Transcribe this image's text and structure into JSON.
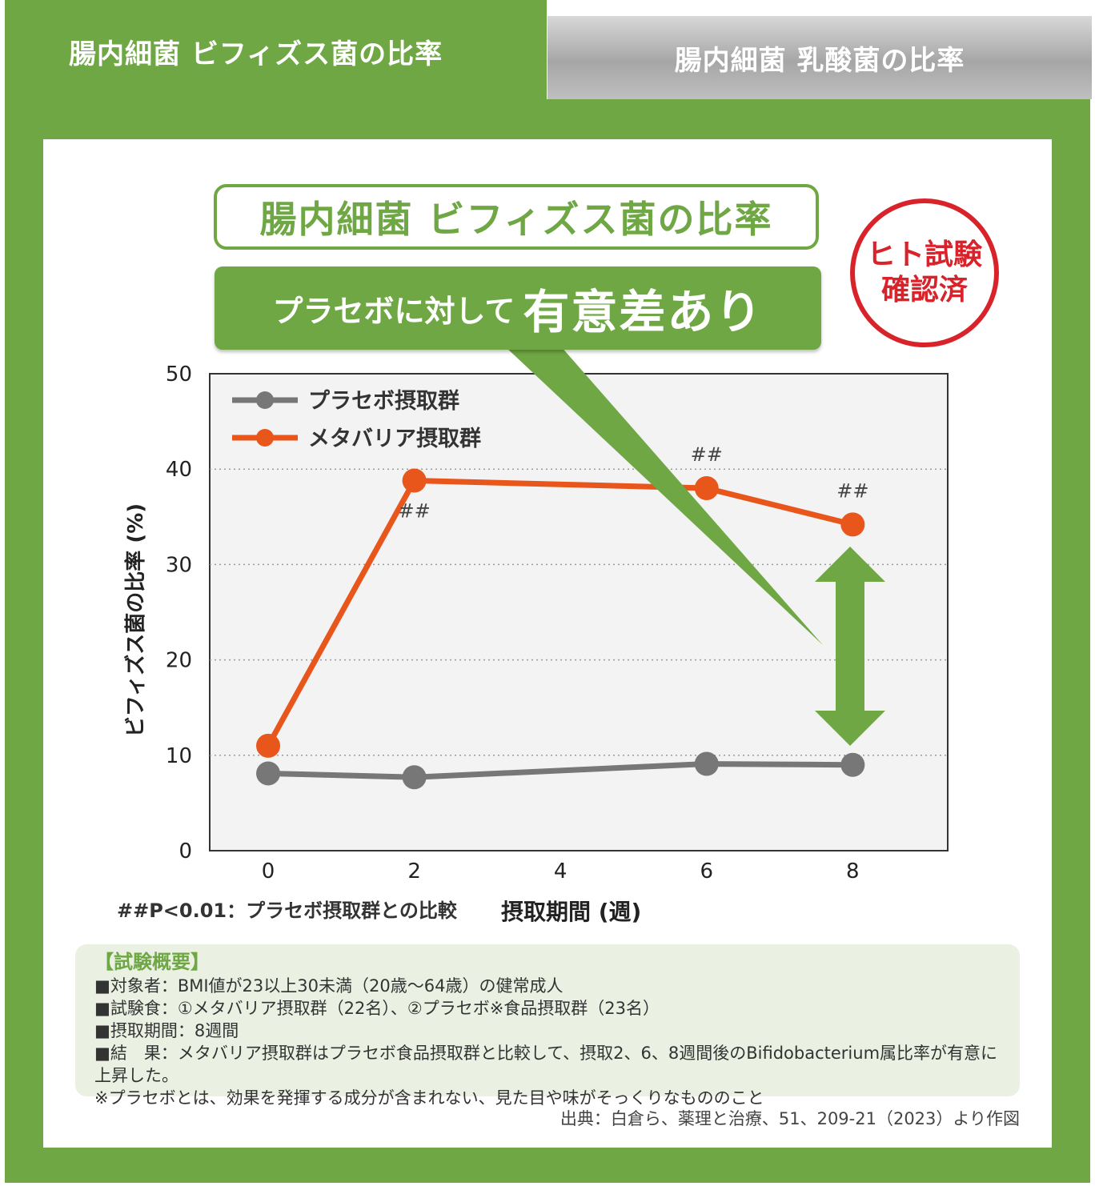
{
  "tabs": [
    {
      "label": "腸内細菌 ビフィズス菌の比率",
      "active": true
    },
    {
      "label": "腸内細菌 乳酸菌の比率",
      "active": false
    }
  ],
  "headline": "腸内細菌 ビフィズス菌の比率",
  "banner": {
    "lead": "プラセボに対して",
    "emphasis": "有意差あり"
  },
  "stamp": {
    "line1": "ヒト試験",
    "line2": "確認済"
  },
  "colors": {
    "accent_green": "#6ea744",
    "placebo_gray": "#777777",
    "metabarier_orange": "#e8561c",
    "stamp_red": "#d8232a"
  },
  "chart_data": {
    "type": "line",
    "title": "",
    "xlabel": "摂取期間 (週)",
    "ylabel": "ビフィズス菌の比率 (%)",
    "x_ticks": [
      0,
      2,
      4,
      6,
      8
    ],
    "y_ticks": [
      0,
      10,
      20,
      30,
      40,
      50
    ],
    "xlim": [
      -0.8,
      9.3
    ],
    "ylim": [
      0,
      50
    ],
    "grid": "horizontal dotted",
    "legend_position": "top-left",
    "series": [
      {
        "name": "プラセボ摂取群",
        "color": "#777777",
        "x": [
          0,
          2,
          6,
          8
        ],
        "y": [
          8.1,
          7.7,
          9.1,
          9.0
        ]
      },
      {
        "name": "メタバリア摂取群",
        "color": "#e8561c",
        "x": [
          0,
          2,
          6,
          8
        ],
        "y": [
          11.0,
          38.8,
          38.0,
          34.2
        ]
      }
    ],
    "significance_marks": [
      {
        "x": 2,
        "label": "##",
        "placement": "below"
      },
      {
        "x": 6,
        "label": "##",
        "placement": "above"
      },
      {
        "x": 8,
        "label": "##",
        "placement": "above"
      }
    ],
    "footnote": "##P<0.01：プラセボ摂取群との比較"
  },
  "summary": {
    "heading": "【試験概要】",
    "lines": [
      "■対象者：BMI値が23以上30未満（20歳～64歳）の健常成人",
      "■試験食：①メタバリア摂取群（22名）、②プラセボ※食品摂取群（23名）",
      "■摂取期間：8週間",
      "■結　果：メタバリア摂取群はプラセボ食品摂取群と比較して、摂取2、6、8週間後のBifidobacterium属比率が有意に上昇した。",
      "※プラセボとは、効果を発揮する成分が含まれない、見た目や味がそっくりなもののこと"
    ]
  },
  "source": "出典：白倉ら、薬理と治療、51、209-21（2023）より作図"
}
